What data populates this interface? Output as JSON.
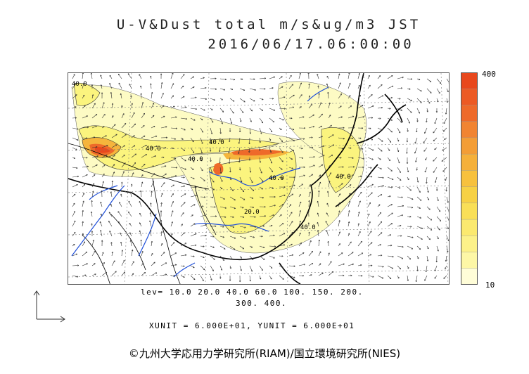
{
  "header": {
    "title_line1": "U-V&Dust total m/s&ug/m3 JST",
    "title_line2": "2016/06/17.06:00:00"
  },
  "map": {
    "contour_labels": [
      "40.0",
      "40.0",
      "40.0",
      "40.0",
      "40.0",
      "20.0",
      "40.0",
      "40.0"
    ],
    "colors": {
      "land_line": "#000000",
      "river": "#1f4fd8",
      "grid": "#7a7a7a",
      "low": "#fdfbc4",
      "mid_low": "#fbf47e",
      "mid": "#f7d83a",
      "mid_high": "#f5b53c",
      "high": "#ee6a2a",
      "max": "#e8481d"
    }
  },
  "colorbar": {
    "max_label": "400",
    "min_label": "10",
    "levels": [
      "#fffdd8",
      "#fdf7a6",
      "#fcf189",
      "#fbe96f",
      "#f9df57",
      "#f7d145",
      "#f7c13e",
      "#f5b03a",
      "#f39d36",
      "#f18432",
      "#ee6a2a",
      "#ec5a24",
      "#e8481d"
    ]
  },
  "legend": {
    "levels_line1": "lev= 10.0 20.0 40.0 60.0 100. 150. 200.",
    "levels_line2": "300. 400.",
    "units_line": "XUNIT = 6.000E+01, YUNIT = 6.000E+01"
  },
  "footer": {
    "copyright": "©九州大学応用力学研究所(RIAM)/国立環境研究所(NIES)"
  }
}
